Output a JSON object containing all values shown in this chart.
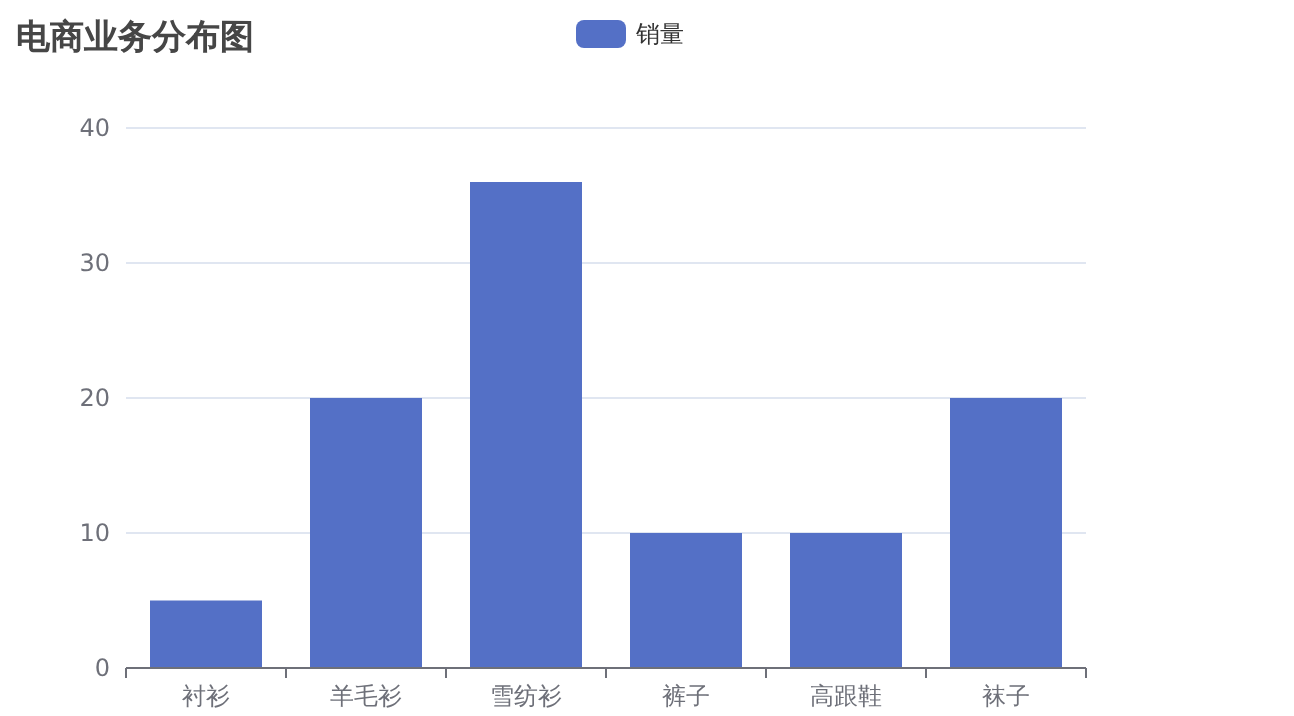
{
  "chart_data": {
    "type": "bar",
    "title": "电商业务分布图",
    "categories": [
      "衬衫",
      "羊毛衫",
      "雪纺衫",
      "裤子",
      "高跟鞋",
      "袜子"
    ],
    "series": [
      {
        "name": "销量",
        "color": "#5470c6",
        "values": [
          5,
          20,
          36,
          10,
          10,
          20
        ]
      }
    ],
    "ylim": [
      0,
      40
    ],
    "yticks": [
      0,
      10,
      20,
      30,
      40
    ],
    "grid": "y",
    "legend": "top"
  }
}
